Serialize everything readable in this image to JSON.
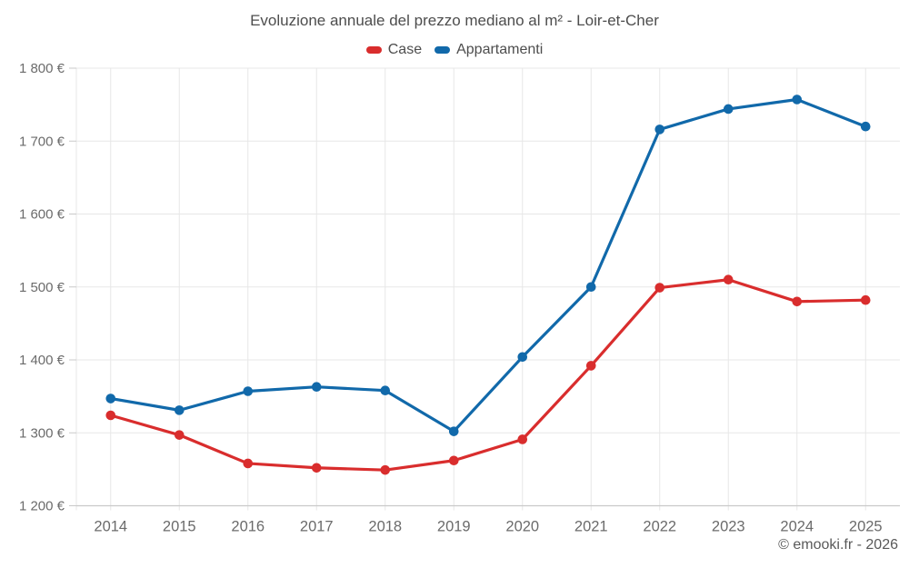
{
  "title": "Evoluzione annuale del prezzo mediano al m² - Loir-et-Cher",
  "copyright": "© emooki.fr - 2026",
  "chart_data": {
    "type": "line",
    "title": "Evoluzione annuale del prezzo mediano al m² - Loir-et-Cher",
    "categories": [
      "2014",
      "2015",
      "2016",
      "2017",
      "2018",
      "2019",
      "2020",
      "2021",
      "2022",
      "2023",
      "2024",
      "2025"
    ],
    "series": [
      {
        "name": "Case",
        "color": "#d92d2d",
        "values": [
          1324,
          1297,
          1258,
          1252,
          1249,
          1262,
          1291,
          1392,
          1499,
          1510,
          1480,
          1482
        ]
      },
      {
        "name": "Appartamenti",
        "color": "#1169aa",
        "values": [
          1347,
          1331,
          1357,
          1363,
          1358,
          1302,
          1404,
          1500,
          1716,
          1744,
          1757,
          1720
        ]
      }
    ],
    "ylim": [
      1200,
      1800
    ],
    "y_ticks": [
      {
        "value": 1200,
        "label": "1 200 €"
      },
      {
        "value": 1300,
        "label": "1 300 €"
      },
      {
        "value": 1400,
        "label": "1 400 €"
      },
      {
        "value": 1500,
        "label": "1 500 €"
      },
      {
        "value": 1600,
        "label": "1 600 €"
      },
      {
        "value": 1700,
        "label": "1 700 €"
      },
      {
        "value": 1800,
        "label": "1 800 €"
      }
    ],
    "grid": true,
    "legend_position": "top"
  },
  "colors": {
    "gridline": "#e7e7e7",
    "axis_line": "#c9c9c9",
    "tick_label": "#6b6b6b",
    "title_text": "#4d4d4d"
  }
}
